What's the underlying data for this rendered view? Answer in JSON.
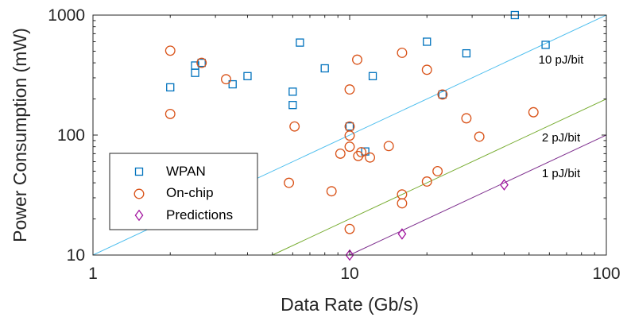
{
  "colors": {
    "wpan": "#0072BD",
    "onchip": "#D95319",
    "predictions": "#A2149F",
    "line10": "#4DBEEE",
    "line2": "#77AC30",
    "line1": "#7E2F8E",
    "axis": "#262626"
  },
  "chart_data": {
    "type": "scatter",
    "xscale": "log",
    "yscale": "log",
    "xlim": [
      1,
      100
    ],
    "ylim": [
      10,
      1000
    ],
    "xlabel": "Data Rate (Gb/s)",
    "ylabel": "Power Consumption (mW)",
    "x_ticks": [
      "1",
      "10",
      "100"
    ],
    "y_ticks": [
      "10",
      "100",
      "1000"
    ],
    "legend_position": "lower-left",
    "series": [
      {
        "name": "WPAN",
        "marker": "square",
        "points": [
          [
            2.0,
            250
          ],
          [
            2.5,
            380
          ],
          [
            2.5,
            330
          ],
          [
            2.65,
            400
          ],
          [
            3.5,
            265
          ],
          [
            4.0,
            310
          ],
          [
            6.0,
            230
          ],
          [
            6.0,
            178
          ],
          [
            6.4,
            590
          ],
          [
            8.0,
            360
          ],
          [
            10.0,
            118
          ],
          [
            11.5,
            73
          ],
          [
            12.3,
            310
          ],
          [
            20.0,
            600
          ],
          [
            23.0,
            218
          ],
          [
            28.5,
            480
          ],
          [
            44.0,
            1000
          ],
          [
            58.0,
            565
          ]
        ]
      },
      {
        "name": "On-chip",
        "marker": "circle",
        "points": [
          [
            2.0,
            505
          ],
          [
            2.0,
            150
          ],
          [
            2.65,
            400
          ],
          [
            3.3,
            292
          ],
          [
            5.8,
            40
          ],
          [
            6.1,
            118
          ],
          [
            8.5,
            34
          ],
          [
            9.2,
            70
          ],
          [
            10.0,
            240
          ],
          [
            10.0,
            118
          ],
          [
            10.0,
            99
          ],
          [
            10.0,
            80
          ],
          [
            10.0,
            16.5
          ],
          [
            10.7,
            425
          ],
          [
            10.8,
            67
          ],
          [
            11.1,
            72
          ],
          [
            12.0,
            65
          ],
          [
            14.2,
            81
          ],
          [
            16.0,
            485
          ],
          [
            16.0,
            32
          ],
          [
            16.0,
            27
          ],
          [
            20.0,
            350
          ],
          [
            20.0,
            41
          ],
          [
            22.0,
            50
          ],
          [
            23.0,
            218
          ],
          [
            28.5,
            138
          ],
          [
            32.0,
            97
          ],
          [
            52.0,
            155
          ]
        ]
      },
      {
        "name": "Predictions",
        "marker": "diamond",
        "points": [
          [
            10.0,
            10
          ],
          [
            16.0,
            15
          ],
          [
            40.0,
            38.5
          ]
        ]
      }
    ],
    "reference_lines": [
      {
        "label": "10 pJ/bit",
        "energy_pj_per_bit": 10
      },
      {
        "label": "2 pJ/bit",
        "energy_pj_per_bit": 2
      },
      {
        "label": "1 pJ/bit",
        "energy_pj_per_bit": 1
      }
    ]
  }
}
